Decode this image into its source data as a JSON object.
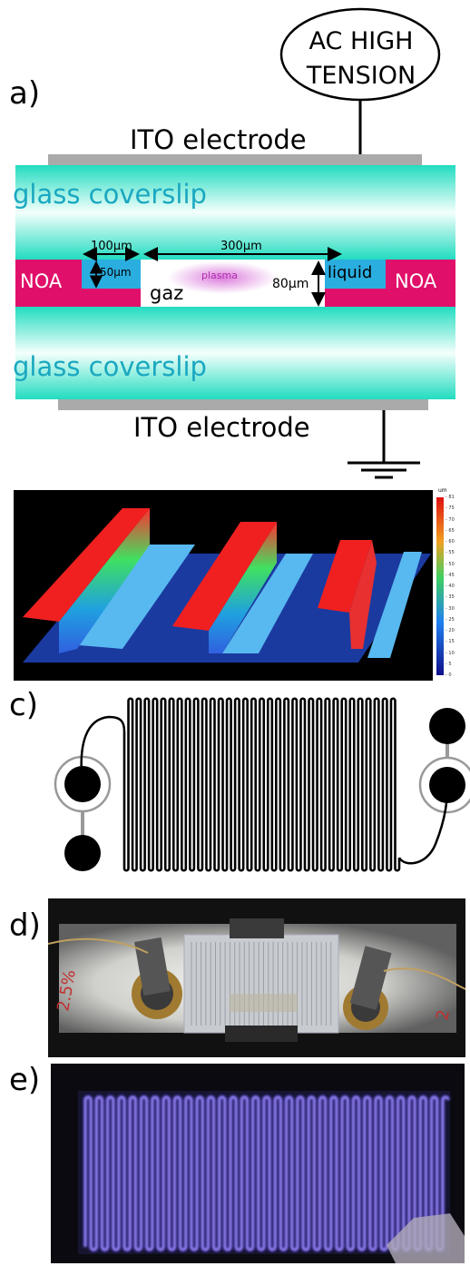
{
  "panels": {
    "a": "a)",
    "b": "b)",
    "c": "c)",
    "d": "d)",
    "e": "e)"
  },
  "schematic": {
    "ac_line1": "AC HIGH",
    "ac_line2": "TENSION",
    "ito_top": "ITO electrode",
    "ito_bottom": "ITO electrode",
    "glass_top": "glass coverslip",
    "glass_bottom": "glass coverslip",
    "noa_left": "NOA",
    "noa_right": "NOA",
    "liquid": "liquid",
    "gaz": "gaz",
    "plasma": "plasma",
    "dim_100": "100µm",
    "dim_300": "300µm",
    "dim_50": "50µm",
    "dim_80": "80µm"
  },
  "colorbar": {
    "unit": "um",
    "ticks": [
      "81",
      "75",
      "70",
      "65",
      "60",
      "55",
      "50",
      "45",
      "40",
      "35",
      "30",
      "25",
      "20",
      "15",
      "10",
      "5",
      "0"
    ]
  },
  "colors": {
    "glass": "#1ee0c0",
    "noa": "#e0106a",
    "liquid": "#2aaee0",
    "ito": "#aaaaaa",
    "glass_text": "#1aa8c0",
    "plasma": "#d050d0",
    "plasma_text": "#b030b0"
  }
}
